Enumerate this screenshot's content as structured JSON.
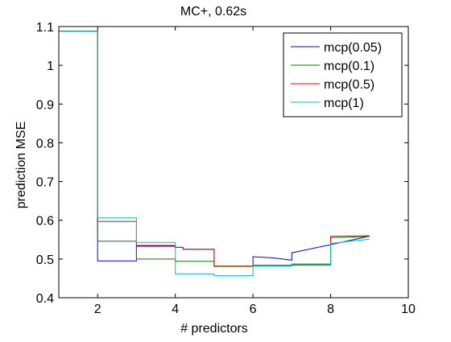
{
  "chart_data": {
    "type": "line",
    "title": "MC+, 0.62s",
    "xlabel": "# predictors",
    "ylabel": "prediction MSE",
    "xlim": [
      1,
      10
    ],
    "ylim": [
      0.4,
      1.1
    ],
    "x_ticks": [
      "2",
      "4",
      "6",
      "8",
      "10"
    ],
    "y_ticks": [
      "0.4",
      "0.5",
      "0.6",
      "0.7",
      "0.8",
      "0.9",
      "1",
      "1.1"
    ],
    "grid": false,
    "legend_position": "top-right",
    "series": [
      {
        "name": "mcp(0.05)",
        "color": "#0000ff",
        "points": [
          [
            1,
            1.088
          ],
          [
            2,
            1.088
          ],
          [
            2,
            0.495
          ],
          [
            3,
            0.495
          ],
          [
            3,
            0.533
          ],
          [
            4,
            0.533
          ],
          [
            4,
            0.53
          ],
          [
            4.2,
            0.53
          ],
          [
            4.2,
            0.525
          ],
          [
            5,
            0.525
          ],
          [
            5,
            0.481
          ],
          [
            6,
            0.481
          ],
          [
            6,
            0.506
          ],
          [
            6.5,
            0.503
          ],
          [
            7,
            0.497
          ],
          [
            7,
            0.516
          ],
          [
            8,
            0.537
          ],
          [
            8.5,
            0.548
          ],
          [
            9,
            0.559
          ]
        ]
      },
      {
        "name": "mcp(0.1)",
        "color": "#008000",
        "points": [
          [
            1,
            1.088
          ],
          [
            2,
            1.088
          ],
          [
            2,
            0.546
          ],
          [
            3,
            0.546
          ],
          [
            3,
            0.5
          ],
          [
            4,
            0.5
          ],
          [
            4,
            0.494
          ],
          [
            5,
            0.494
          ],
          [
            5,
            0.482
          ],
          [
            6,
            0.482
          ],
          [
            6,
            0.484
          ],
          [
            7,
            0.484
          ],
          [
            7,
            0.487
          ],
          [
            8,
            0.487
          ],
          [
            8,
            0.555
          ],
          [
            9,
            0.558
          ]
        ]
      },
      {
        "name": "mcp(0.5)",
        "color": "#ff0000",
        "points": [
          [
            1,
            1.088
          ],
          [
            2,
            1.088
          ],
          [
            2,
            0.597
          ],
          [
            3,
            0.597
          ],
          [
            3,
            0.535
          ],
          [
            4,
            0.535
          ],
          [
            4,
            0.53
          ],
          [
            4.2,
            0.53
          ],
          [
            4.2,
            0.525
          ],
          [
            5,
            0.525
          ],
          [
            5,
            0.481
          ],
          [
            6,
            0.481
          ],
          [
            6,
            0.482
          ],
          [
            7,
            0.482
          ],
          [
            7,
            0.484
          ],
          [
            8,
            0.484
          ],
          [
            8,
            0.559
          ],
          [
            9,
            0.56
          ]
        ]
      },
      {
        "name": "mcp(1)",
        "color": "#00bfbf",
        "points": [
          [
            1,
            1.088
          ],
          [
            2,
            1.088
          ],
          [
            2,
            0.606
          ],
          [
            3,
            0.606
          ],
          [
            3,
            0.543
          ],
          [
            4,
            0.543
          ],
          [
            4,
            0.462
          ],
          [
            5,
            0.462
          ],
          [
            5,
            0.457
          ],
          [
            6,
            0.457
          ],
          [
            6,
            0.482
          ],
          [
            7,
            0.482
          ],
          [
            7,
            0.485
          ],
          [
            8,
            0.485
          ],
          [
            8,
            0.54
          ],
          [
            8.5,
            0.546
          ],
          [
            9,
            0.551
          ]
        ]
      }
    ]
  }
}
